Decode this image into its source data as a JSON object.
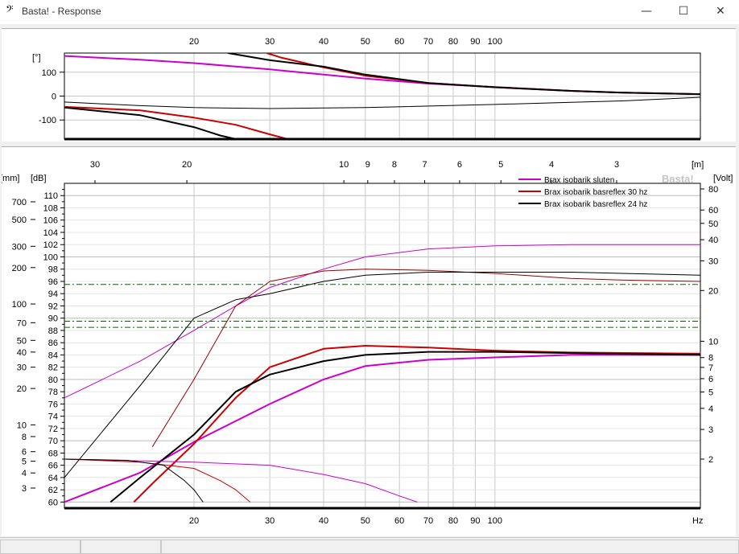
{
  "window": {
    "icon": "bass-clef-icon",
    "icon_glyph": "𝄢",
    "title": "Basta! - Response",
    "minimize_glyph": "—",
    "maximize_glyph": "☐",
    "close_glyph": "✕"
  },
  "phase_chart": {
    "ylabel": "[°]",
    "x_ticks": [
      "20",
      "30",
      "40",
      "50",
      "60",
      "70",
      "80",
      "90",
      "100"
    ],
    "y_ticks": [
      "100",
      "0",
      "-100"
    ]
  },
  "main_chart": {
    "watermark": "Basta!",
    "left_outer_label": "[mm]",
    "left_inner_label": "[dB]",
    "right_label": "[Volt]",
    "top_label": "[m]",
    "x_unit": "Hz",
    "x_ticks": [
      "20",
      "30",
      "40",
      "50",
      "60",
      "70",
      "80",
      "90",
      "100"
    ],
    "top_ticks": [
      "30",
      "20",
      "10",
      "9",
      "8",
      "7",
      "6",
      "5",
      "4",
      "3"
    ],
    "db_ticks": [
      "110",
      "108",
      "106",
      "104",
      "102",
      "100",
      "98",
      "96",
      "94",
      "92",
      "90",
      "88",
      "86",
      "84",
      "82",
      "80",
      "78",
      "76",
      "74",
      "72",
      "70",
      "68",
      "66",
      "64",
      "62",
      "60"
    ],
    "mm_ticks": [
      "700",
      "500",
      "300",
      "200",
      "100",
      "70",
      "50",
      "40",
      "30",
      "20",
      "10",
      "8",
      "6",
      "5",
      "4",
      "3"
    ],
    "volt_ticks": [
      "80",
      "60",
      "50",
      "40",
      "30",
      "20",
      "10",
      "8",
      "7",
      "6",
      "5",
      "4",
      "3",
      "2"
    ],
    "legend": [
      "Brax isobarik sluten",
      "Brax isobarik basreflex 30 hz",
      "Brax isobarik basreflex 24 hz"
    ]
  },
  "chart_data": [
    {
      "type": "line",
      "x_scale": "log",
      "xlim": [
        10,
        300
      ],
      "ylim": [
        -180,
        180
      ],
      "ylabel": "[°]",
      "grid": true,
      "series": [
        {
          "color": "#cc00cc",
          "width": 2,
          "points": [
            [
              10,
              168
            ],
            [
              15,
              152
            ],
            [
              20,
              138
            ],
            [
              30,
              112
            ],
            [
              40,
              90
            ],
            [
              50,
              73
            ],
            [
              70,
              52
            ],
            [
              100,
              38
            ],
            [
              150,
              22
            ],
            [
              200,
              14
            ],
            [
              300,
              8
            ]
          ]
        },
        {
          "color": "#cc0000",
          "width": 2,
          "points": [
            [
              29.5,
              180
            ],
            [
              32,
              160
            ],
            [
              40,
              120
            ],
            [
              50,
              85
            ],
            [
              70,
              55
            ],
            [
              100,
              37
            ],
            [
              150,
              22
            ],
            [
              200,
              14
            ],
            [
              300,
              8
            ]
          ]
        },
        {
          "color": "#000000",
          "width": 2,
          "points": [
            [
              24,
              180
            ],
            [
              30,
              150
            ],
            [
              40,
              123
            ],
            [
              50,
              90
            ],
            [
              70,
              55
            ],
            [
              100,
              37
            ],
            [
              150,
              22
            ],
            [
              200,
              14
            ],
            [
              300,
              8
            ]
          ]
        },
        {
          "color": "#000000",
          "width": 1,
          "points": [
            [
              10,
              -25
            ],
            [
              15,
              -40
            ],
            [
              20,
              -48
            ],
            [
              30,
              -52
            ],
            [
              50,
              -48
            ],
            [
              100,
              -35
            ],
            [
              200,
              -20
            ],
            [
              300,
              -5
            ]
          ]
        },
        {
          "color": "#cc0000",
          "width": 2,
          "points": [
            [
              10,
              -45
            ],
            [
              15,
              -60
            ],
            [
              20,
              -90
            ],
            [
              25,
              -120
            ],
            [
              30,
              -160
            ],
            [
              33,
              -180
            ]
          ]
        },
        {
          "color": "#000000",
          "width": 2,
          "points": [
            [
              10,
              -48
            ],
            [
              15,
              -80
            ],
            [
              20,
              -130
            ],
            [
              23,
              -165
            ],
            [
              25,
              -180
            ]
          ]
        }
      ]
    },
    {
      "type": "line",
      "x_scale": "log",
      "xlim": [
        10,
        300
      ],
      "ylim": [
        59,
        112
      ],
      "ylabel": "[dB]",
      "xlabel": "Hz",
      "grid": true,
      "legend_position": "top-right",
      "series": [
        {
          "name": "Brax isobarik sluten",
          "color": "#cc00cc",
          "width": 1,
          "points": [
            [
              10,
              77
            ],
            [
              15,
              83
            ],
            [
              20,
              88
            ],
            [
              25,
              92
            ],
            [
              30,
              95
            ],
            [
              40,
              98
            ],
            [
              50,
              100
            ],
            [
              70,
              101.3
            ],
            [
              100,
              101.8
            ],
            [
              150,
              102
            ],
            [
              300,
              102
            ]
          ]
        },
        {
          "name": "Brax isobarik basreflex 30 hz",
          "color": "#990000",
          "width": 1,
          "points": [
            [
              16,
              69
            ],
            [
              20,
              80
            ],
            [
              25,
              92
            ],
            [
              30,
              96
            ],
            [
              40,
              97.7
            ],
            [
              50,
              98
            ],
            [
              70,
              97.8
            ],
            [
              100,
              97.3
            ],
            [
              150,
              96.5
            ],
            [
              200,
              96.2
            ],
            [
              300,
              96
            ]
          ]
        },
        {
          "name": "Brax isobarik basreflex 24 hz",
          "color": "#000000",
          "width": 1,
          "points": [
            [
              10,
              64
            ],
            [
              15,
              79
            ],
            [
              20,
              90
            ],
            [
              25,
              93
            ],
            [
              30,
              94
            ],
            [
              40,
              96
            ],
            [
              50,
              97
            ],
            [
              70,
              97.5
            ],
            [
              100,
              97.5
            ],
            [
              150,
              97.5
            ],
            [
              300,
              97
            ]
          ]
        },
        {
          "color": "#cc00cc",
          "width": 2,
          "points": [
            [
              10,
              60
            ],
            [
              15,
              64.8
            ],
            [
              20,
              69.8
            ],
            [
              30,
              76
            ],
            [
              40,
              80
            ],
            [
              50,
              82.2
            ],
            [
              70,
              83.2
            ],
            [
              100,
              83.6
            ],
            [
              150,
              84
            ],
            [
              300,
              84
            ]
          ]
        },
        {
          "color": "#cc0000",
          "width": 2,
          "points": [
            [
              14.5,
              60
            ],
            [
              16,
              63
            ],
            [
              20,
              69.5
            ],
            [
              25,
              77
            ],
            [
              30,
              82
            ],
            [
              40,
              85
            ],
            [
              50,
              85.5
            ],
            [
              70,
              85.2
            ],
            [
              100,
              84.7
            ],
            [
              150,
              84.4
            ],
            [
              300,
              84.2
            ]
          ]
        },
        {
          "color": "#000000",
          "width": 2,
          "points": [
            [
              12.8,
              60
            ],
            [
              15,
              64
            ],
            [
              20,
              71
            ],
            [
              25,
              78
            ],
            [
              30,
              80.8
            ],
            [
              40,
              83
            ],
            [
              50,
              84
            ],
            [
              70,
              84.5
            ],
            [
              100,
              84.5
            ],
            [
              150,
              84.3
            ],
            [
              300,
              84
            ]
          ]
        },
        {
          "color": "#cc00cc",
          "width": 1,
          "points": [
            [
              10,
              67
            ],
            [
              20,
              66.5
            ],
            [
              30,
              66
            ],
            [
              40,
              64.5
            ],
            [
              50,
              63
            ],
            [
              60,
              61
            ],
            [
              66,
              60
            ]
          ]
        },
        {
          "color": "#cc0000",
          "width": 1,
          "points": [
            [
              10,
              67
            ],
            [
              15,
              66.5
            ],
            [
              20,
              65.5
            ],
            [
              23,
              63.5
            ],
            [
              25,
              62
            ],
            [
              27,
              60
            ]
          ]
        },
        {
          "color": "#000000",
          "width": 1,
          "points": [
            [
              10,
              67
            ],
            [
              14,
              66.8
            ],
            [
              17,
              66
            ],
            [
              19,
              63.5
            ],
            [
              20,
              62
            ],
            [
              21,
              60
            ]
          ]
        },
        {
          "color": "#006600",
          "width": 1,
          "dash": true,
          "points": [
            [
              10,
              95.5
            ],
            [
              300,
              95.5
            ]
          ]
        },
        {
          "color": "#006600",
          "width": 1,
          "dash": true,
          "points": [
            [
              10,
              89.5
            ],
            [
              300,
              89.5
            ]
          ]
        },
        {
          "color": "#006600",
          "width": 1,
          "dash": true,
          "points": [
            [
              10,
              88.5
            ],
            [
              300,
              88.5
            ]
          ]
        }
      ]
    }
  ]
}
